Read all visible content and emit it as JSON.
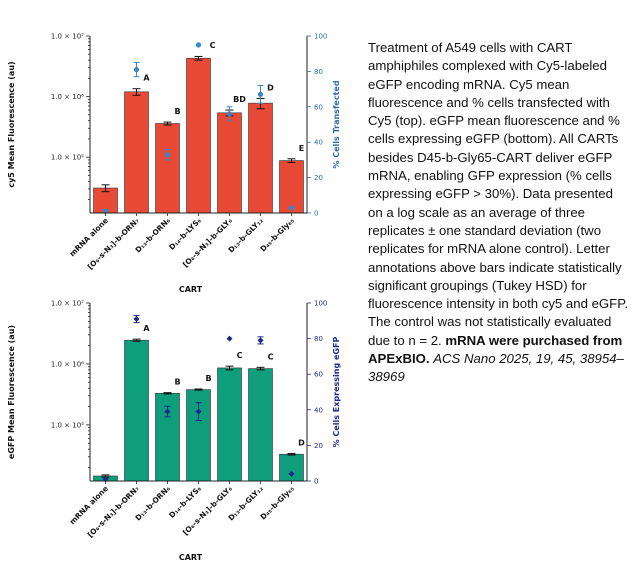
{
  "figure": {
    "categories": [
      "mRNA alone",
      "[O₆-s-N₃]-b-ORN₇",
      "D₁₃-b-ORN₆",
      "D₁₄-b-LYS₉",
      "[O₆-s-N₃]-b-GLY₆",
      "D₁₃-b-GLY₁₂",
      "D₄₅-b-Gly₆₅"
    ],
    "xlabel": "CART",
    "colors": {
      "cy5_bar": "#e84a35",
      "egfp_bar": "#0f9e7c",
      "cy5_point": "#3a86c8",
      "egfp_point": "#1b2a8a",
      "right_axis_cy5": "#2b6cb0",
      "right_axis_egfp": "#1b2a8a"
    }
  },
  "chart_data": [
    {
      "type": "bar",
      "ylabel": "cy5 Mean Fluorescence (au)",
      "y2label": "% Cells Transfected",
      "yscale": "log",
      "ylim": [
        12000,
        10000000
      ],
      "y2lim": [
        0,
        100
      ],
      "yticks": [
        "1.0 × 10⁵",
        "1.0 × 10⁶",
        "1.0 × 10⁷"
      ],
      "y2ticks": [
        "0",
        "20",
        "40",
        "60",
        "80",
        "100"
      ],
      "categories": [
        "mRNA alone",
        "[O₆-s-N₃]-b-ORN₇",
        "D₁₃-b-ORN₆",
        "D₁₄-b-LYS₉",
        "[O₆-s-N₃]-b-GLY₆",
        "D₁₃-b-GLY₁₂",
        "D₄₅-b-Gly₆₅"
      ],
      "series": [
        {
          "name": "cy5 Mean Fluorescence (au)",
          "values": [
            31000,
            1200000,
            360000,
            4300000,
            540000,
            780000,
            88000
          ],
          "errors": [
            4000,
            150000,
            20000,
            300000,
            60000,
            150000,
            6000
          ]
        },
        {
          "name": "% Cells Transfected",
          "values": [
            1,
            81,
            33,
            95,
            56,
            67,
            3
          ],
          "errors": [
            1,
            4,
            3,
            0,
            4,
            5,
            0
          ]
        }
      ],
      "labels": [
        "",
        "A",
        "B",
        "C",
        "BD",
        "D",
        "E"
      ]
    },
    {
      "type": "bar",
      "ylabel": "eGFP Mean Fluorescence (au)",
      "y2label": "% Cells Expressing eGFP",
      "yscale": "log",
      "ylim": [
        12000,
        10000000
      ],
      "y2lim": [
        0,
        100
      ],
      "yticks": [
        "1.0 × 10⁵",
        "1.0 × 10⁶",
        "1.0 × 10⁷"
      ],
      "y2ticks": [
        "0",
        "20",
        "40",
        "60",
        "80",
        "100"
      ],
      "categories": [
        "mRNA alone",
        "[O₆-s-N₃]-b-ORN₇",
        "D₁₃-b-ORN₆",
        "D₁₄-b-LYS₉",
        "[O₆-s-N₃]-b-GLY₆",
        "D₁₃-b-GLY₁₂",
        "D₄₅-b-Gly₆₅"
      ],
      "series": [
        {
          "name": "eGFP Mean Fluorescence (au)",
          "values": [
            14500,
            2450000,
            330000,
            380000,
            860000,
            840000,
            33000
          ],
          "errors": [
            600,
            100000,
            8000,
            8000,
            60000,
            40000,
            1000
          ]
        },
        {
          "name": "% Cells Expressing eGFP",
          "values": [
            1,
            91,
            39,
            39,
            80,
            79,
            4
          ],
          "errors": [
            0,
            2,
            3,
            5,
            0,
            2,
            0
          ]
        }
      ],
      "labels": [
        "",
        "A",
        "B",
        "B",
        "C",
        "C",
        "D"
      ]
    }
  ],
  "caption": {
    "text": "Treatment of A549 cells with CART amphiphiles complexed with Cy5-labeled eGFP encoding mRNA. Cy5 mean fluorescence and % cells transfected with Cy5 (top). eGFP mean fluorescence and % cells expressing eGFP (bottom). All CARTs besides D45-b-Gly65-CART deliver eGFP mRNA, enabling GFP expression (% cells expressing eGFP > 30%). Data presented on a log scale as an average of three replicates ± one standard deviation (two replicates for mRNA alone control). Letter annotations above bars indicate statistically significant groupings (Tukey HSD) for fluorescence intensity in both cy5 and eGFP. The control was not statistically evaluated due to n = 2.",
    "source_bold": "mRNA were purchased from APExBIO.",
    "citation": "ACS Nano 2025, 19, 45, 38954–38969"
  }
}
